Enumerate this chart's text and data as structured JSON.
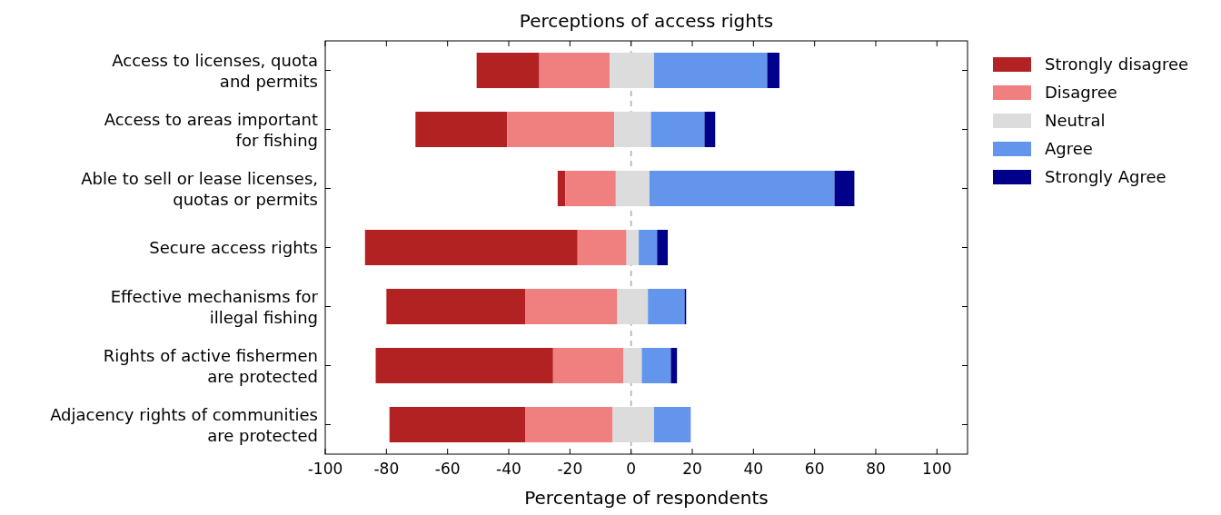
{
  "chart_data": {
    "type": "bar",
    "orientation": "horizontal",
    "title": "Perceptions of access rights",
    "xlabel": "Percentage of respondents",
    "categories": [
      "Access to licenses, quota\nand permits",
      "Access to areas important\nfor fishing",
      "Able to sell or lease licenses,\nquotas or permits",
      "Secure access rights",
      "Effective mechanisms for\nillegal fishing",
      "Rights of active fishermen\nare protected",
      "Adjacency rights of communities\nare protected"
    ],
    "series": [
      {
        "name": "Strongly disagree",
        "color": "#b22222",
        "base": [
          -50.5,
          -70.5,
          -24,
          -87,
          -80,
          -83.5,
          -79
        ],
        "values": [
          20.5,
          30,
          2.5,
          69.5,
          45.5,
          58,
          44.5
        ]
      },
      {
        "name": "Disagree",
        "color": "#f08080",
        "base": [
          -30,
          -40.5,
          -21.5,
          -17.5,
          -34.5,
          -25.5,
          -34.5
        ],
        "values": [
          23,
          35,
          16.5,
          16,
          30,
          23,
          28.5
        ]
      },
      {
        "name": "Neutral",
        "color": "#dcdcdc",
        "base": [
          -7,
          -5.5,
          -5,
          -1.5,
          -4.5,
          -2.5,
          -6
        ],
        "values": [
          14.5,
          12,
          11,
          4,
          10,
          6,
          13.5
        ]
      },
      {
        "name": "Agree",
        "color": "#6495ed",
        "base": [
          7.5,
          6.5,
          6,
          2.5,
          5.5,
          3.5,
          7.5
        ],
        "values": [
          37,
          17.5,
          60.5,
          6,
          12,
          9.5,
          12
        ]
      },
      {
        "name": "Strongly Agree",
        "color": "#00008b",
        "base": [
          44.5,
          24,
          66.5,
          8.5,
          17.5,
          13,
          null
        ],
        "values": [
          4,
          3.5,
          6.5,
          3.5,
          0.5,
          2,
          null
        ]
      }
    ],
    "xlim": [
      -100,
      110
    ],
    "xticks": [
      -100,
      -80,
      -60,
      -40,
      -20,
      0,
      20,
      40,
      60,
      80,
      100
    ],
    "ref_lines": [
      {
        "axis": "x",
        "value": 0,
        "color": "#aaaaaa",
        "line_style": "dashed"
      }
    ],
    "legend": "right",
    "grid": false
  }
}
